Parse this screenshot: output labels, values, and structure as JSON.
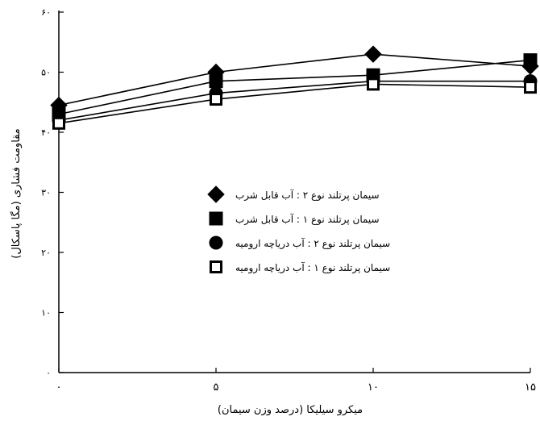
{
  "chart_data": {
    "type": "line",
    "x": [
      0,
      5,
      10,
      15
    ],
    "xlabel": "میکرو سیلیکا (درصد وزن سیمان)",
    "ylabel": "مقاومت فشاری (مگا پاسکال)",
    "ylim": [
      0,
      60
    ],
    "xlim": [
      0,
      15
    ],
    "xticks": [
      0,
      5,
      10,
      15
    ],
    "xtick_labels": [
      "۰",
      "۵",
      "۱۰",
      "۱۵"
    ],
    "yticks": [
      0,
      10,
      20,
      30,
      40,
      50,
      60
    ],
    "ytick_labels": [
      "۰",
      "۱۰",
      "۲۰",
      "۳۰",
      "۴۰",
      "۵۰",
      "۶۰"
    ],
    "grid": false,
    "legend_position": "center",
    "series": [
      {
        "name": "سیمان پرتلند نوع ۲ : آب قابل شرب",
        "marker": "diamond-filled",
        "color": "#000000",
        "values": [
          44.5,
          50,
          53,
          51
        ]
      },
      {
        "name": "سیمان پرتلند نوع ۱ : آب قابل شرب",
        "marker": "square-filled",
        "color": "#000000",
        "values": [
          43,
          48.5,
          49.5,
          52
        ]
      },
      {
        "name": "سیمان پرتلند نوع ۲ : آب دریاچه ارومیه",
        "marker": "circle-filled",
        "color": "#000000",
        "values": [
          42,
          46.5,
          48.5,
          48.5
        ]
      },
      {
        "name": "سیمان پرتلند نوع ۱ : آب دریاچه ارومیه",
        "marker": "square-open",
        "color": "#000000",
        "values": [
          41.5,
          45.5,
          48,
          47.5
        ]
      }
    ]
  }
}
